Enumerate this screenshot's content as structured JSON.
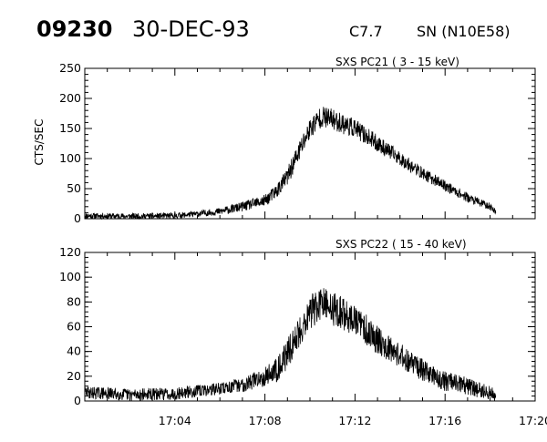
{
  "header": {
    "event_id": "09230",
    "date": "30-DEC-93",
    "flare_class": "C7.7",
    "location": "SN (N10E58)"
  },
  "chart_data": [
    {
      "type": "line",
      "title": "SXS PC21  (  3 - 15 keV)",
      "ylabel": "CTS/SEC",
      "xlabel": "",
      "ylim": [
        0,
        250
      ],
      "yticks": [
        "0",
        "50",
        "100",
        "150",
        "200",
        "250"
      ],
      "xlim_minutes": [
        0,
        20
      ],
      "xticks": [
        "17:04",
        "17:08",
        "17:12",
        "17:16",
        "17:20"
      ],
      "series": [
        {
          "x_time": [
            "17:00",
            "17:02",
            "17:04",
            "17:05",
            "17:06",
            "17:07",
            "17:08",
            "17:08:30",
            "17:09",
            "17:09:30",
            "17:10",
            "17:10:30",
            "17:11",
            "17:12",
            "17:13",
            "17:14",
            "17:15",
            "17:16",
            "17:17",
            "17:18",
            "17:18:15"
          ],
          "values": [
            5,
            4,
            5,
            8,
            12,
            20,
            30,
            45,
            70,
            110,
            150,
            170,
            165,
            150,
            125,
            100,
            75,
            55,
            35,
            20,
            12
          ],
          "noise_amplitude": [
            5,
            5,
            5,
            5,
            6,
            8,
            10,
            12,
            15,
            18,
            18,
            18,
            18,
            16,
            14,
            12,
            10,
            9,
            8,
            6,
            5
          ]
        }
      ]
    },
    {
      "type": "line",
      "title": "SXS PC22  ( 15 - 40 keV)",
      "ylabel": "",
      "xlabel": "",
      "ylim": [
        0,
        120
      ],
      "yticks": [
        "0",
        "20",
        "40",
        "60",
        "80",
        "100",
        "120"
      ],
      "xlim_minutes": [
        0,
        20
      ],
      "xticks": [
        "17:04",
        "17:08",
        "17:12",
        "17:16",
        "17:20"
      ],
      "series": [
        {
          "x_time": [
            "17:00",
            "17:02",
            "17:04",
            "17:05",
            "17:06",
            "17:07",
            "17:08",
            "17:08:30",
            "17:09",
            "17:09:30",
            "17:10",
            "17:10:30",
            "17:11",
            "17:12",
            "17:13",
            "17:14",
            "17:15",
            "17:16",
            "17:17",
            "17:18",
            "17:18:15"
          ],
          "values": [
            7,
            5,
            6,
            8,
            10,
            13,
            20,
            25,
            38,
            55,
            72,
            78,
            75,
            65,
            50,
            37,
            25,
            16,
            12,
            6,
            4
          ],
          "noise_amplitude": [
            5,
            5,
            5,
            5,
            5,
            6,
            8,
            10,
            12,
            14,
            14,
            14,
            14,
            13,
            12,
            10,
            9,
            8,
            7,
            6,
            5
          ]
        }
      ]
    }
  ]
}
